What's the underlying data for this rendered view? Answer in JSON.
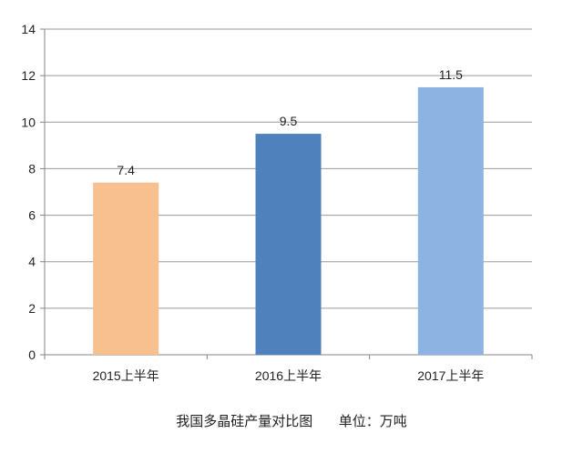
{
  "chart_data": {
    "type": "bar",
    "categories": [
      "2015上半年",
      "2016上半年",
      "2017上半年"
    ],
    "values": [
      7.4,
      9.5,
      11.5
    ],
    "data_labels": [
      "7.4",
      "9.5",
      "11.5"
    ],
    "bar_colors": [
      "#f9c08f",
      "#4f81bd",
      "#8db3e2"
    ],
    "ylim": [
      0,
      14
    ],
    "yticks": [
      "0",
      "2",
      "4",
      "6",
      "8",
      "10",
      "12",
      "14"
    ],
    "grid": true,
    "title": "",
    "xlabel": "",
    "ylabel": ""
  },
  "caption": {
    "text": "我国多晶硅产量对比图      单位：万吨"
  }
}
